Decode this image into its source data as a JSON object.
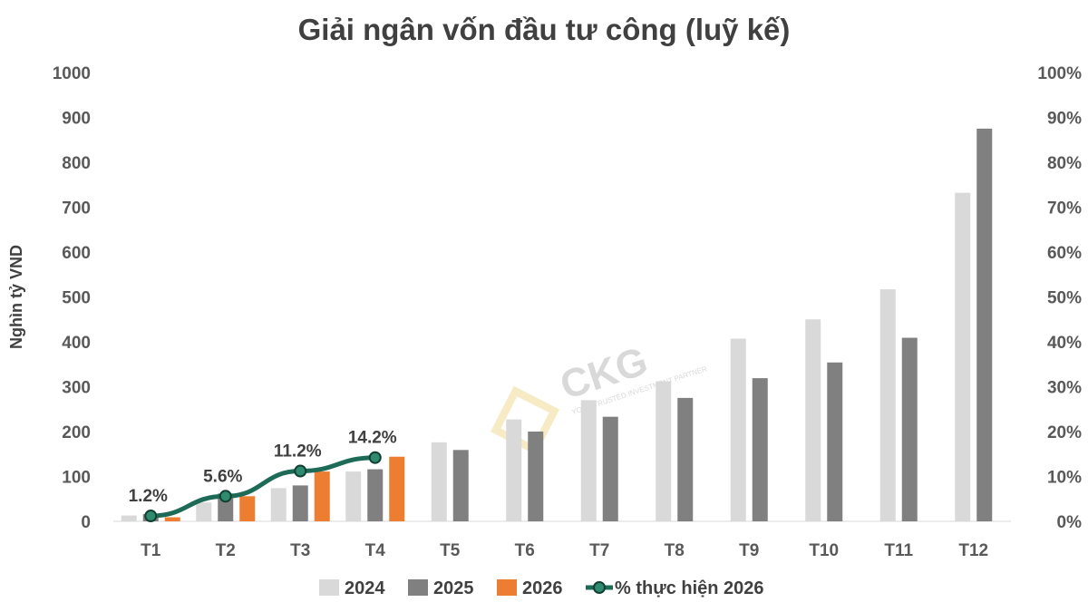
{
  "chart_data": {
    "type": "bar",
    "title": "Giải ngân vốn đầu tư công (luỹ kế)",
    "ylabel": "Nghìn tỷ VND",
    "ylim": [
      0,
      1000
    ],
    "y_ticks": [
      "0",
      "100",
      "200",
      "300",
      "400",
      "500",
      "600",
      "700",
      "800",
      "900",
      "1000"
    ],
    "y2lim": [
      0,
      1
    ],
    "y2_ticks": [
      "0%",
      "10%",
      "20%",
      "30%",
      "40%",
      "50%",
      "60%",
      "70%",
      "80%",
      "90%",
      "100%"
    ],
    "categories": [
      "T1",
      "T2",
      "T3",
      "T4",
      "T5",
      "T6",
      "T7",
      "T8",
      "T9",
      "T10",
      "T11",
      "T12"
    ],
    "series": [
      {
        "name": "2024",
        "type": "bar",
        "color": "#d9d9d9",
        "values": [
          13,
          42,
          74,
          111,
          176,
          227,
          270,
          312,
          407,
          450,
          517,
          732
        ]
      },
      {
        "name": "2025",
        "type": "bar",
        "color": "#808080",
        "values": [
          16,
          62,
          80,
          116,
          159,
          200,
          233,
          275,
          319,
          354,
          409,
          875
        ]
      },
      {
        "name": "2026",
        "type": "bar",
        "color": "#ed7d31",
        "values": [
          9,
          56,
          111,
          144,
          null,
          null,
          null,
          null,
          null,
          null,
          null,
          null
        ]
      },
      {
        "name": "% thực hiện 2026",
        "type": "line",
        "axis": "right",
        "color": "#1d6b56",
        "values": [
          0.012,
          0.056,
          0.112,
          0.142,
          null,
          null,
          null,
          null,
          null,
          null,
          null,
          null
        ],
        "labels": [
          "1.2%",
          "5.6%",
          "11.2%",
          "14.2%"
        ]
      }
    ],
    "legend_position": "bottom",
    "grid": false
  },
  "watermark": {
    "text": "CKG",
    "subtext": "YOUR TRUSTED INVESTMENT PARTNER"
  }
}
